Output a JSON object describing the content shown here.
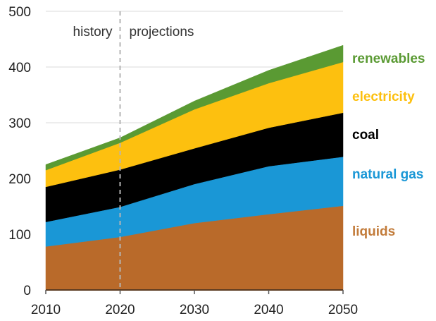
{
  "chart_data": {
    "type": "area",
    "stacked": true,
    "title": "",
    "xlabel": "",
    "ylabel": "",
    "x": [
      2010,
      2020,
      2030,
      2040,
      2050
    ],
    "xticks": [
      "2010",
      "2020",
      "2030",
      "2040",
      "2050"
    ],
    "yticks": [
      "0",
      "100",
      "200",
      "300",
      "400",
      "500"
    ],
    "ylim": [
      0,
      500
    ],
    "xlim": [
      2010,
      2050
    ],
    "grid": "horizontal",
    "legend": "right (inline labels)",
    "divider": {
      "x": 2020,
      "style": "dashed"
    },
    "annotations": [
      {
        "text": "history",
        "side": "left-of-divider",
        "position": "top"
      },
      {
        "text": "projections",
        "side": "right-of-divider",
        "position": "top"
      }
    ],
    "series": [
      {
        "name": "liquids",
        "color": "#B96A2A",
        "values": [
          78,
          95,
          120,
          136,
          151
        ]
      },
      {
        "name": "natural gas",
        "color": "#1A97D6",
        "values": [
          44,
          54,
          70,
          86,
          88
        ]
      },
      {
        "name": "coal",
        "color": "#000000",
        "values": [
          63,
          67,
          64,
          69,
          79
        ]
      },
      {
        "name": "electricity",
        "color": "#FDC00F",
        "values": [
          30,
          48,
          70,
          80,
          91
        ]
      },
      {
        "name": "renewables",
        "color": "#5A9A33",
        "values": [
          10,
          9,
          15,
          23,
          30
        ]
      }
    ],
    "series_label_colors": {
      "liquids": "#C27B3A",
      "natural gas": "#1A97D6",
      "coal": "#000000",
      "electricity": "#FDC00F",
      "renewables": "#5A9A33"
    }
  }
}
